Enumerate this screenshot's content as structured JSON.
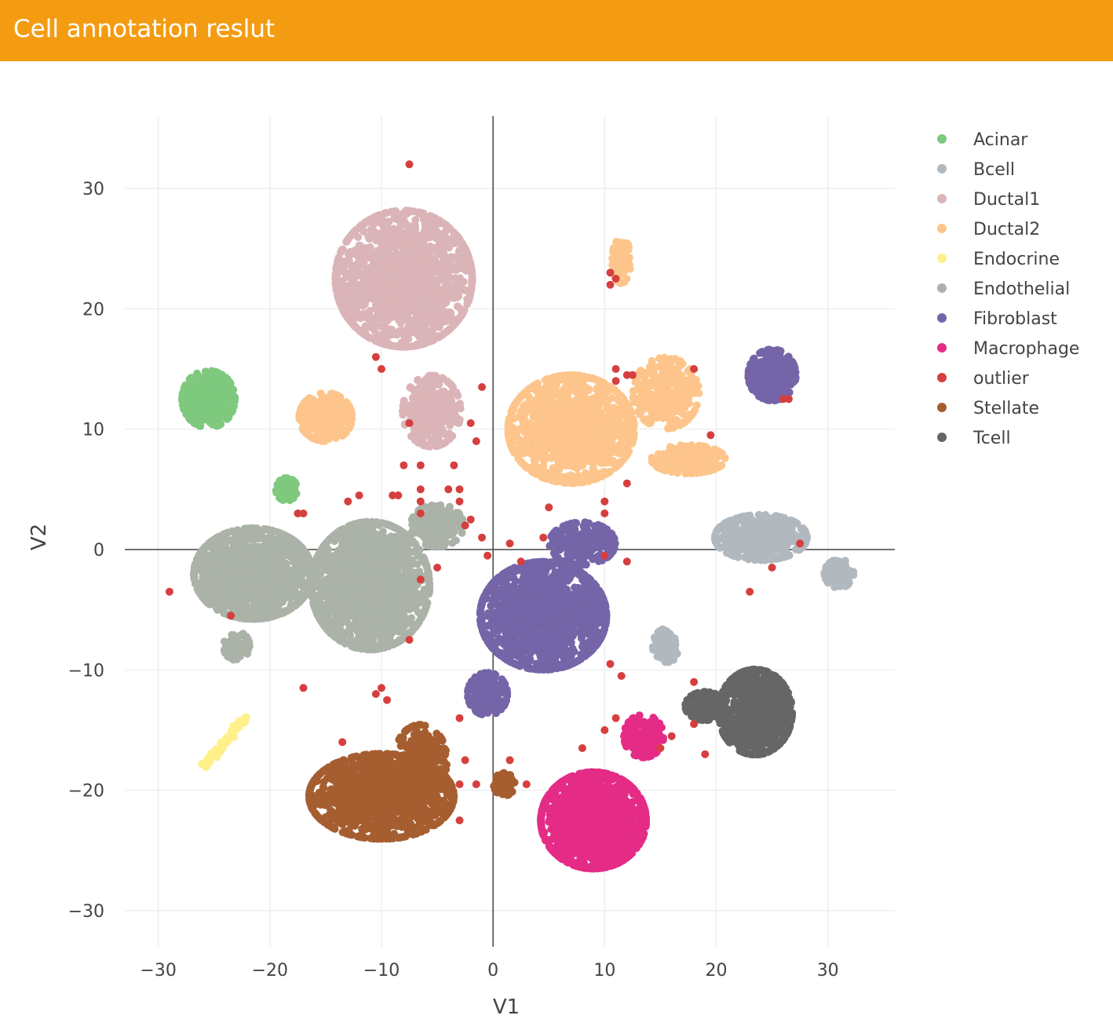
{
  "header": {
    "title": "Cell annotation reslut"
  },
  "chart_data": {
    "type": "scatter",
    "xlabel": "V1",
    "ylabel": "V2",
    "xlim": [
      -33,
      36
    ],
    "ylim": [
      -33,
      36
    ],
    "xticks": [
      -30,
      -20,
      -10,
      0,
      10,
      20,
      30
    ],
    "yticks": [
      -30,
      -20,
      -10,
      0,
      10,
      20,
      30
    ],
    "xtick_labels": [
      "−30",
      "−20",
      "−10",
      "0",
      "10",
      "20",
      "30"
    ],
    "ytick_labels": [
      "−30",
      "−20",
      "−10",
      "0",
      "10",
      "20",
      "30"
    ],
    "grid": true,
    "zero_lines": true,
    "legend_position": "right",
    "series": [
      {
        "name": "Acinar",
        "color": "#7fc97f",
        "clusters": [
          {
            "cx": -25.5,
            "cy": 12.5,
            "sx": 2.0,
            "sy": 2.0,
            "n": 380
          },
          {
            "cx": -18.5,
            "cy": 5.0,
            "sx": 0.8,
            "sy": 0.8,
            "n": 90
          }
        ]
      },
      {
        "name": "Bcell",
        "color": "#b1b9bf",
        "clusters": [
          {
            "cx": 24.0,
            "cy": 1.0,
            "sx": 3.5,
            "sy": 1.6,
            "n": 420
          },
          {
            "cx": 31.0,
            "cy": -2.0,
            "sx": 1.1,
            "sy": 1.0,
            "n": 110
          },
          {
            "cx": 15.5,
            "cy": -8.0,
            "sx": 1.0,
            "sy": 1.2,
            "n": 100
          }
        ]
      },
      {
        "name": "Ductal1",
        "color": "#dbb4b8",
        "clusters": [
          {
            "cx": -8.0,
            "cy": 22.5,
            "sx": 5.2,
            "sy": 4.8,
            "n": 1500
          },
          {
            "cx": -5.5,
            "cy": 11.5,
            "sx": 2.2,
            "sy": 2.5,
            "n": 320
          }
        ]
      },
      {
        "name": "Ductal2",
        "color": "#fdc58b",
        "clusters": [
          {
            "cx": 7.0,
            "cy": 10.0,
            "sx": 4.8,
            "sy": 3.8,
            "n": 1100
          },
          {
            "cx": 15.5,
            "cy": 13.0,
            "sx": 2.5,
            "sy": 2.5,
            "n": 280
          },
          {
            "cx": 17.5,
            "cy": 7.5,
            "sx": 2.8,
            "sy": 1.0,
            "n": 200
          },
          {
            "cx": -15.0,
            "cy": 11.0,
            "sx": 2.0,
            "sy": 1.7,
            "n": 320
          },
          {
            "cx": 11.5,
            "cy": 24.0,
            "sx": 0.7,
            "sy": 1.6,
            "n": 110
          }
        ]
      },
      {
        "name": "Endocrine",
        "color": "#fff08a",
        "clusters": [
          {
            "cx": -24.0,
            "cy": -16.0,
            "sx": 1.0,
            "sy": 1.0,
            "n": 60
          }
        ]
      },
      {
        "name": "Endothelial",
        "color": "#abb2a8",
        "clusters": [
          {
            "cx": -21.5,
            "cy": -2.0,
            "sx": 4.5,
            "sy": 3.2,
            "n": 1200
          },
          {
            "cx": -11.0,
            "cy": -3.0,
            "sx": 4.5,
            "sy": 4.5,
            "n": 1500
          },
          {
            "cx": -5.0,
            "cy": 2.0,
            "sx": 2.0,
            "sy": 1.5,
            "n": 200
          },
          {
            "cx": -23.0,
            "cy": -8.0,
            "sx": 1.0,
            "sy": 1.0,
            "n": 80
          }
        ]
      },
      {
        "name": "Fibroblast",
        "color": "#7565a8",
        "clusters": [
          {
            "cx": 4.5,
            "cy": -5.5,
            "sx": 4.8,
            "sy": 3.8,
            "n": 1500
          },
          {
            "cx": 8.0,
            "cy": 0.5,
            "sx": 2.5,
            "sy": 1.5,
            "n": 250
          },
          {
            "cx": -0.5,
            "cy": -12.0,
            "sx": 1.5,
            "sy": 1.5,
            "n": 160
          },
          {
            "cx": 25.0,
            "cy": 14.5,
            "sx": 1.8,
            "sy": 1.8,
            "n": 380
          }
        ]
      },
      {
        "name": "Macrophage",
        "color": "#e42c86",
        "clusters": [
          {
            "cx": 9.0,
            "cy": -22.5,
            "sx": 4.0,
            "sy": 3.4,
            "n": 1300
          },
          {
            "cx": 13.5,
            "cy": -15.5,
            "sx": 1.5,
            "sy": 1.5,
            "n": 150
          }
        ]
      },
      {
        "name": "outlier",
        "color": "#d63f3f",
        "clusters": []
      },
      {
        "name": "Stellate",
        "color": "#a65e30",
        "clusters": [
          {
            "cx": -10.0,
            "cy": -20.5,
            "sx": 5.5,
            "sy": 3.0,
            "n": 1300
          },
          {
            "cx": -6.5,
            "cy": -17.5,
            "sx": 2.0,
            "sy": 2.5,
            "n": 300
          },
          {
            "cx": 1.0,
            "cy": -19.5,
            "sx": 0.8,
            "sy": 0.8,
            "n": 70
          }
        ]
      },
      {
        "name": "Tcell",
        "color": "#666666",
        "clusters": [
          {
            "cx": 23.5,
            "cy": -13.5,
            "sx": 2.8,
            "sy": 3.0,
            "n": 750
          },
          {
            "cx": 19.0,
            "cy": -13.0,
            "sx": 1.5,
            "sy": 1.0,
            "n": 150
          }
        ]
      }
    ],
    "outlier_points": [
      [
        -7.5,
        32.0
      ],
      [
        -10.5,
        16.0
      ],
      [
        -10.0,
        15.0
      ],
      [
        -7.5,
        10.5
      ],
      [
        -1.0,
        13.5
      ],
      [
        -2.0,
        10.5
      ],
      [
        -1.5,
        9.0
      ],
      [
        -3.5,
        7.0
      ],
      [
        -8.0,
        7.0
      ],
      [
        -6.5,
        7.0
      ],
      [
        -6.5,
        5.0
      ],
      [
        -6.5,
        4.0
      ],
      [
        -6.5,
        3.0
      ],
      [
        -9.0,
        4.5
      ],
      [
        -8.5,
        4.5
      ],
      [
        -12.0,
        4.5
      ],
      [
        -13.0,
        4.0
      ],
      [
        -17.5,
        3.0
      ],
      [
        -17.0,
        3.0
      ],
      [
        -4.0,
        5.0
      ],
      [
        -3.0,
        5.0
      ],
      [
        -3.0,
        4.0
      ],
      [
        -2.0,
        2.5
      ],
      [
        -2.5,
        2.0
      ],
      [
        -1.0,
        1.0
      ],
      [
        1.5,
        0.5
      ],
      [
        2.5,
        -1.0
      ],
      [
        -0.5,
        -0.5
      ],
      [
        -6.5,
        -2.5
      ],
      [
        -5.0,
        -1.5
      ],
      [
        -29.0,
        -3.5
      ],
      [
        -23.5,
        -5.5
      ],
      [
        -7.5,
        -7.5
      ],
      [
        -17.0,
        -11.5
      ],
      [
        -10.0,
        -11.5
      ],
      [
        -10.5,
        -12.0
      ],
      [
        -9.5,
        -12.5
      ],
      [
        -3.0,
        -14.0
      ],
      [
        -13.5,
        -16.0
      ],
      [
        -2.5,
        -17.5
      ],
      [
        -3.0,
        -19.5
      ],
      [
        -1.5,
        -19.5
      ],
      [
        1.5,
        -17.5
      ],
      [
        3.0,
        -19.5
      ],
      [
        -3.0,
        -22.5
      ],
      [
        11.0,
        15.0
      ],
      [
        11.0,
        14.0
      ],
      [
        12.0,
        14.5
      ],
      [
        12.5,
        14.5
      ],
      [
        18.0,
        15.0
      ],
      [
        10.5,
        22.0
      ],
      [
        10.5,
        23.0
      ],
      [
        11.0,
        22.5
      ],
      [
        19.5,
        9.5
      ],
      [
        12.0,
        5.5
      ],
      [
        10.0,
        4.0
      ],
      [
        10.0,
        3.0
      ],
      [
        10.0,
        -0.5
      ],
      [
        12.0,
        -1.0
      ],
      [
        4.5,
        1.0
      ],
      [
        5.0,
        3.5
      ],
      [
        27.5,
        0.5
      ],
      [
        25.0,
        -1.5
      ],
      [
        23.0,
        -3.5
      ],
      [
        26.0,
        12.5
      ],
      [
        26.5,
        12.5
      ],
      [
        10.5,
        -9.5
      ],
      [
        11.5,
        -10.5
      ],
      [
        18.0,
        -11.0
      ],
      [
        11.0,
        -14.0
      ],
      [
        10.0,
        -15.0
      ],
      [
        8.0,
        -16.5
      ],
      [
        15.0,
        -16.5
      ],
      [
        16.0,
        -15.5
      ],
      [
        19.0,
        -17.0
      ],
      [
        18.0,
        -14.5
      ]
    ]
  }
}
